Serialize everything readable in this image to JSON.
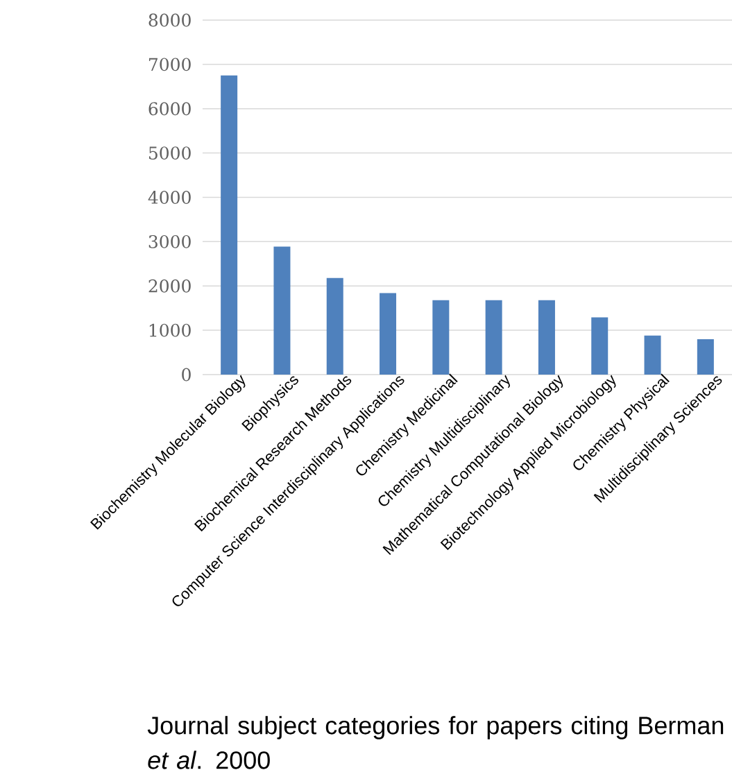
{
  "chart_data": {
    "type": "bar",
    "categories": [
      "Biochemistry Molecular Biology",
      "Biophysics",
      "Biochemical Research Methods",
      "Computer Science Interdisciplinary Applications",
      "Chemistry Medicinal",
      "Chemistry Multidisciplinary",
      "Mathematical Computational Biology",
      "Biotechnology Applied Microbiology",
      "Chemistry Physical",
      "Multidisciplinary Sciences"
    ],
    "values": [
      6750,
      2890,
      2180,
      1840,
      1680,
      1680,
      1680,
      1290,
      880,
      800
    ],
    "color": "#4f81bd",
    "ylim": [
      0,
      8000
    ],
    "yticks": [
      0,
      1000,
      2000,
      3000,
      4000,
      5000,
      6000,
      7000,
      8000
    ],
    "grid": "y",
    "annotations": [
      "Journal subject categories for papers citing Berman *et al*. 2000"
    ]
  }
}
